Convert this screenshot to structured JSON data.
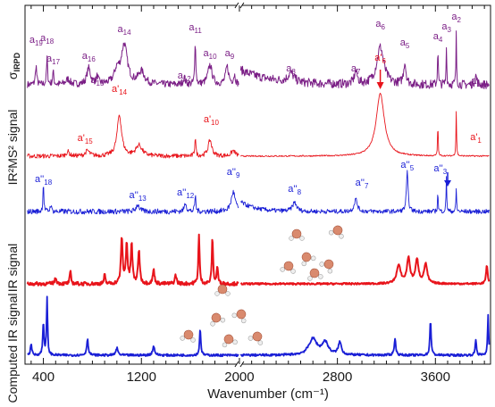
{
  "chart_data": {
    "type": "line",
    "xlabel": "Wavenumber (cm⁻¹)",
    "x_ticks": [
      400,
      1200,
      2000,
      2800,
      3600
    ],
    "xlim": [
      250,
      4050
    ],
    "axis_break_at": 2000,
    "ylabel_units_shown": false,
    "panels": [
      {
        "ylabel": "σ",
        "ylabel_sub": "IRPD",
        "color": "#7b1f86"
      },
      {
        "ylabel": "IR²MS² signal",
        "color": "#e8141b"
      },
      {
        "ylabel": "IR²MS² signal",
        "color": "#1a1fd6"
      },
      {
        "ylabel": "IR signal",
        "color": "#e8141b"
      },
      {
        "ylabel": "Computed IR signal",
        "color": "#1a1fd6"
      }
    ],
    "annotations": {
      "irpd": [
        {
          "text": "a19",
          "x": 340
        },
        {
          "text": "a18",
          "x": 430
        },
        {
          "text": "a17",
          "x": 480
        },
        {
          "text": "a16",
          "x": 770
        },
        {
          "text": "a15",
          "x": 840
        },
        {
          "text": "a14",
          "x": 1060
        },
        {
          "text": "a12",
          "x": 1550
        },
        {
          "text": "a11",
          "x": 1640
        },
        {
          "text": "a10",
          "x": 1760
        },
        {
          "text": "a9",
          "x": 1920
        },
        {
          "text": "a8",
          "x": 2420
        },
        {
          "text": "a7",
          "x": 2950
        },
        {
          "text": "a6",
          "x": 3150
        },
        {
          "text": "a5",
          "x": 3350
        },
        {
          "text": "a4",
          "x": 3620
        },
        {
          "text": "a3",
          "x": 3690
        },
        {
          "text": "a2",
          "x": 3770
        },
        {
          "text": "a1",
          "x": 3930
        }
      ],
      "ir2ms2_red": [
        {
          "text": "a'15",
          "x": 740
        },
        {
          "text": "a'14",
          "x": 1020
        },
        {
          "text": "a'10",
          "x": 1770
        },
        {
          "text": "a'6",
          "x": 3150
        },
        {
          "text": "a'1",
          "x": 3930
        }
      ],
      "ir2ms2_blue": [
        {
          "text": "a''18",
          "x": 400
        },
        {
          "text": "a''13",
          "x": 1170
        },
        {
          "text": "a''12",
          "x": 1560
        },
        {
          "text": "a''9",
          "x": 1950
        },
        {
          "text": "a''8",
          "x": 2450
        },
        {
          "text": "a''7",
          "x": 3000
        },
        {
          "text": "a''5",
          "x": 3370
        },
        {
          "text": "a''3",
          "x": 3640
        }
      ]
    }
  }
}
